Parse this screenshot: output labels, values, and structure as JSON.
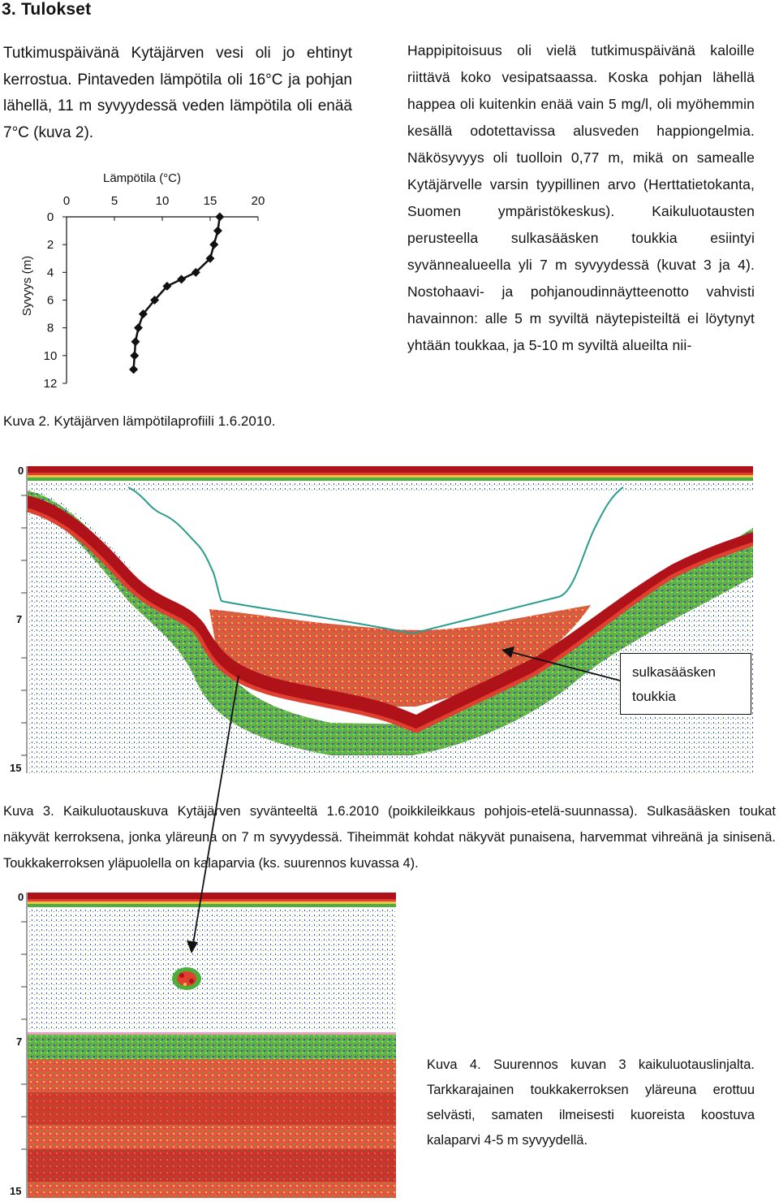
{
  "section": {
    "heading": "3. Tulokset"
  },
  "left_text": "Tutkimuspäivänä Kytäjärven vesi oli jo ehtinyt kerrostua. Pintaveden lämpötila oli 16°C ja pohjan lähellä, 11 m syvyydessä veden lämpötila oli enää 7°C (kuva 2).",
  "right_text": "Happipitoisuus oli vielä tutkimuspäivänä kaloille riittävä koko vesipatsaassa. Koska pohjan lähellä happea oli kuitenkin enää vain 5 mg/l, oli myöhemmin kesällä odotettavissa alusveden happiongelmia. Näkösyvyys oli tuolloin 0,77 m, mikä on samealle Kytäjärvelle varsin tyypillinen arvo (Herttatietokanta, Suomen ympäristökeskus). Kaikuluotausten perusteella sulkasääsken toukkia esiintyi syvännealueella yli 7 m syvyydessä (kuvat 3 ja 4). Nostohaavi- ja pohjanoudinnäytteenotto vahvisti havainnon: alle 5 m syviltä näytepisteiltä ei löytynyt yhtään toukkaa, ja 5-10 m syviltä alueilta nii-",
  "chart_data": {
    "type": "scatter",
    "title": "Lämpötila (°C)",
    "xlabel": "Lämpötila (°C)",
    "ylabel": "Syvyys (m)",
    "xlim": [
      0,
      20
    ],
    "ylim": [
      12,
      0
    ],
    "xticks": [
      "0",
      "5",
      "10",
      "15",
      "20"
    ],
    "yticks": [
      "0",
      "2",
      "4",
      "6",
      "8",
      "10",
      "12"
    ],
    "grid": false,
    "line": true,
    "x": [
      16.0,
      15.8,
      15.4,
      15.0,
      13.5,
      12.0,
      10.5,
      9.2,
      8.0,
      7.5,
      7.2,
      7.1,
      7.0
    ],
    "y": [
      0,
      1,
      2,
      3,
      4,
      4.5,
      5,
      6,
      7,
      8,
      9,
      10,
      11
    ]
  },
  "kuva2_caption": "Kuva 2. Kytäjärven lämpötilaprofiili 1.6.2010.",
  "echogram": {
    "depth_labels": [
      "0",
      "7",
      "15"
    ],
    "callout": "sulkasääsken toukkia"
  },
  "kuva3_caption": "Kuva 3. Kaikuluotauskuva Kytäjärven syvänteeltä 1.6.2010 (poikkileikkaus pohjois-etelä-suunnassa). Sulkasääsken toukat näkyvät kerroksena, jonka yläreuna on 7 m syvyydessä. Tiheimmät kohdat näkyvät punaisena, harvemmat vihreänä ja sinisenä. Toukkakerroksen yläpuolella on kalaparvia (ks. suurennos kuvassa 4).",
  "zoom": {
    "depth_labels": [
      "0",
      "7",
      "15"
    ]
  },
  "kuva4_caption": "Kuva 4. Suurennos kuvan 3 kaikuluotauslinjalta. Tarkkarajainen toukkakerroksen yläreuna erottuu selvästi, samaten ilmeisesti kuoreista koostuva kalaparvi 4-5 m syvyydellä.",
  "colors": {
    "strong_echo": "#b0121a",
    "medium_echo": "#e0402a",
    "weak_echo": "#4caf3c",
    "faint_echo": "#3a4fc0",
    "temp_line": "#2a9d8f"
  }
}
